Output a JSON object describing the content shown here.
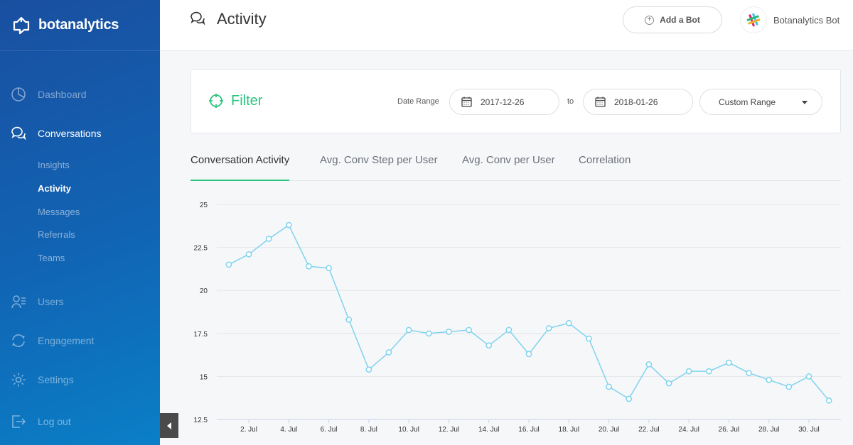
{
  "brand": {
    "name": "botanalytics"
  },
  "sidebar": {
    "items": [
      {
        "label": "Dashboard",
        "icon": "pie-chart-icon",
        "state": "dim"
      },
      {
        "label": "Conversations",
        "icon": "chat-bubbles-icon",
        "state": "active"
      },
      {
        "label": "Users",
        "icon": "users-icon",
        "state": "dim"
      },
      {
        "label": "Engagement",
        "icon": "refresh-icon",
        "state": "dim"
      },
      {
        "label": "Settings",
        "icon": "gear-icon",
        "state": "dim"
      },
      {
        "label": "Log out",
        "icon": "logout-icon",
        "state": "dim"
      }
    ],
    "subitems": [
      {
        "label": "Insights",
        "active": false
      },
      {
        "label": "Activity",
        "active": true
      },
      {
        "label": "Messages",
        "active": false
      },
      {
        "label": "Referrals",
        "active": false
      },
      {
        "label": "Teams",
        "active": false
      }
    ]
  },
  "header": {
    "title": "Activity",
    "add_bot_label": "Add a Bot",
    "bot_name": "Botanalytics Bot"
  },
  "filter": {
    "title": "Filter",
    "date_range_label": "Date Range",
    "start_date": "2017-12-26",
    "to_label": "to",
    "end_date": "2018-01-26",
    "range_option": "Custom Range"
  },
  "tabs": [
    {
      "label": "Conversation Activity",
      "active": true
    },
    {
      "label": "Avg. Conv Step per User",
      "active": false
    },
    {
      "label": "Avg. Conv per User",
      "active": false
    },
    {
      "label": "Correlation",
      "active": false
    }
  ],
  "colors": {
    "accent": "#2cc57f",
    "line": "#7fd3ee",
    "sidebar_top": "#1a4fa0",
    "sidebar_bottom": "#0a7fc7"
  },
  "chart_data": {
    "type": "line",
    "title": "",
    "xlabel": "",
    "ylabel": "",
    "ylim": [
      12.5,
      25
    ],
    "yticks": [
      25,
      22.5,
      20,
      17.5,
      15,
      12.5
    ],
    "xtick_labels": [
      "2. Jul",
      "4. Jul",
      "6. Jul",
      "8. Jul",
      "10. Jul",
      "12. Jul",
      "14. Jul",
      "16. Jul",
      "18. Jul",
      "20. Jul",
      "22. Jul",
      "24. Jul",
      "26. Jul",
      "28. Jul",
      "30. Jul"
    ],
    "grid": true,
    "x": [
      1,
      2,
      3,
      4,
      5,
      6,
      7,
      8,
      9,
      10,
      11,
      12,
      13,
      14,
      15,
      16,
      17,
      18,
      19,
      20,
      21,
      22,
      23,
      24,
      25,
      26,
      27,
      28,
      29,
      30,
      31
    ],
    "values": [
      21.5,
      22.1,
      23.0,
      23.8,
      21.4,
      21.3,
      18.3,
      15.4,
      16.4,
      17.7,
      17.5,
      17.6,
      17.7,
      16.8,
      17.7,
      16.3,
      17.8,
      18.1,
      17.2,
      14.4,
      13.7,
      15.7,
      14.6,
      15.3,
      15.3,
      15.8,
      15.2,
      14.8,
      14.4,
      15.0,
      13.6
    ]
  }
}
